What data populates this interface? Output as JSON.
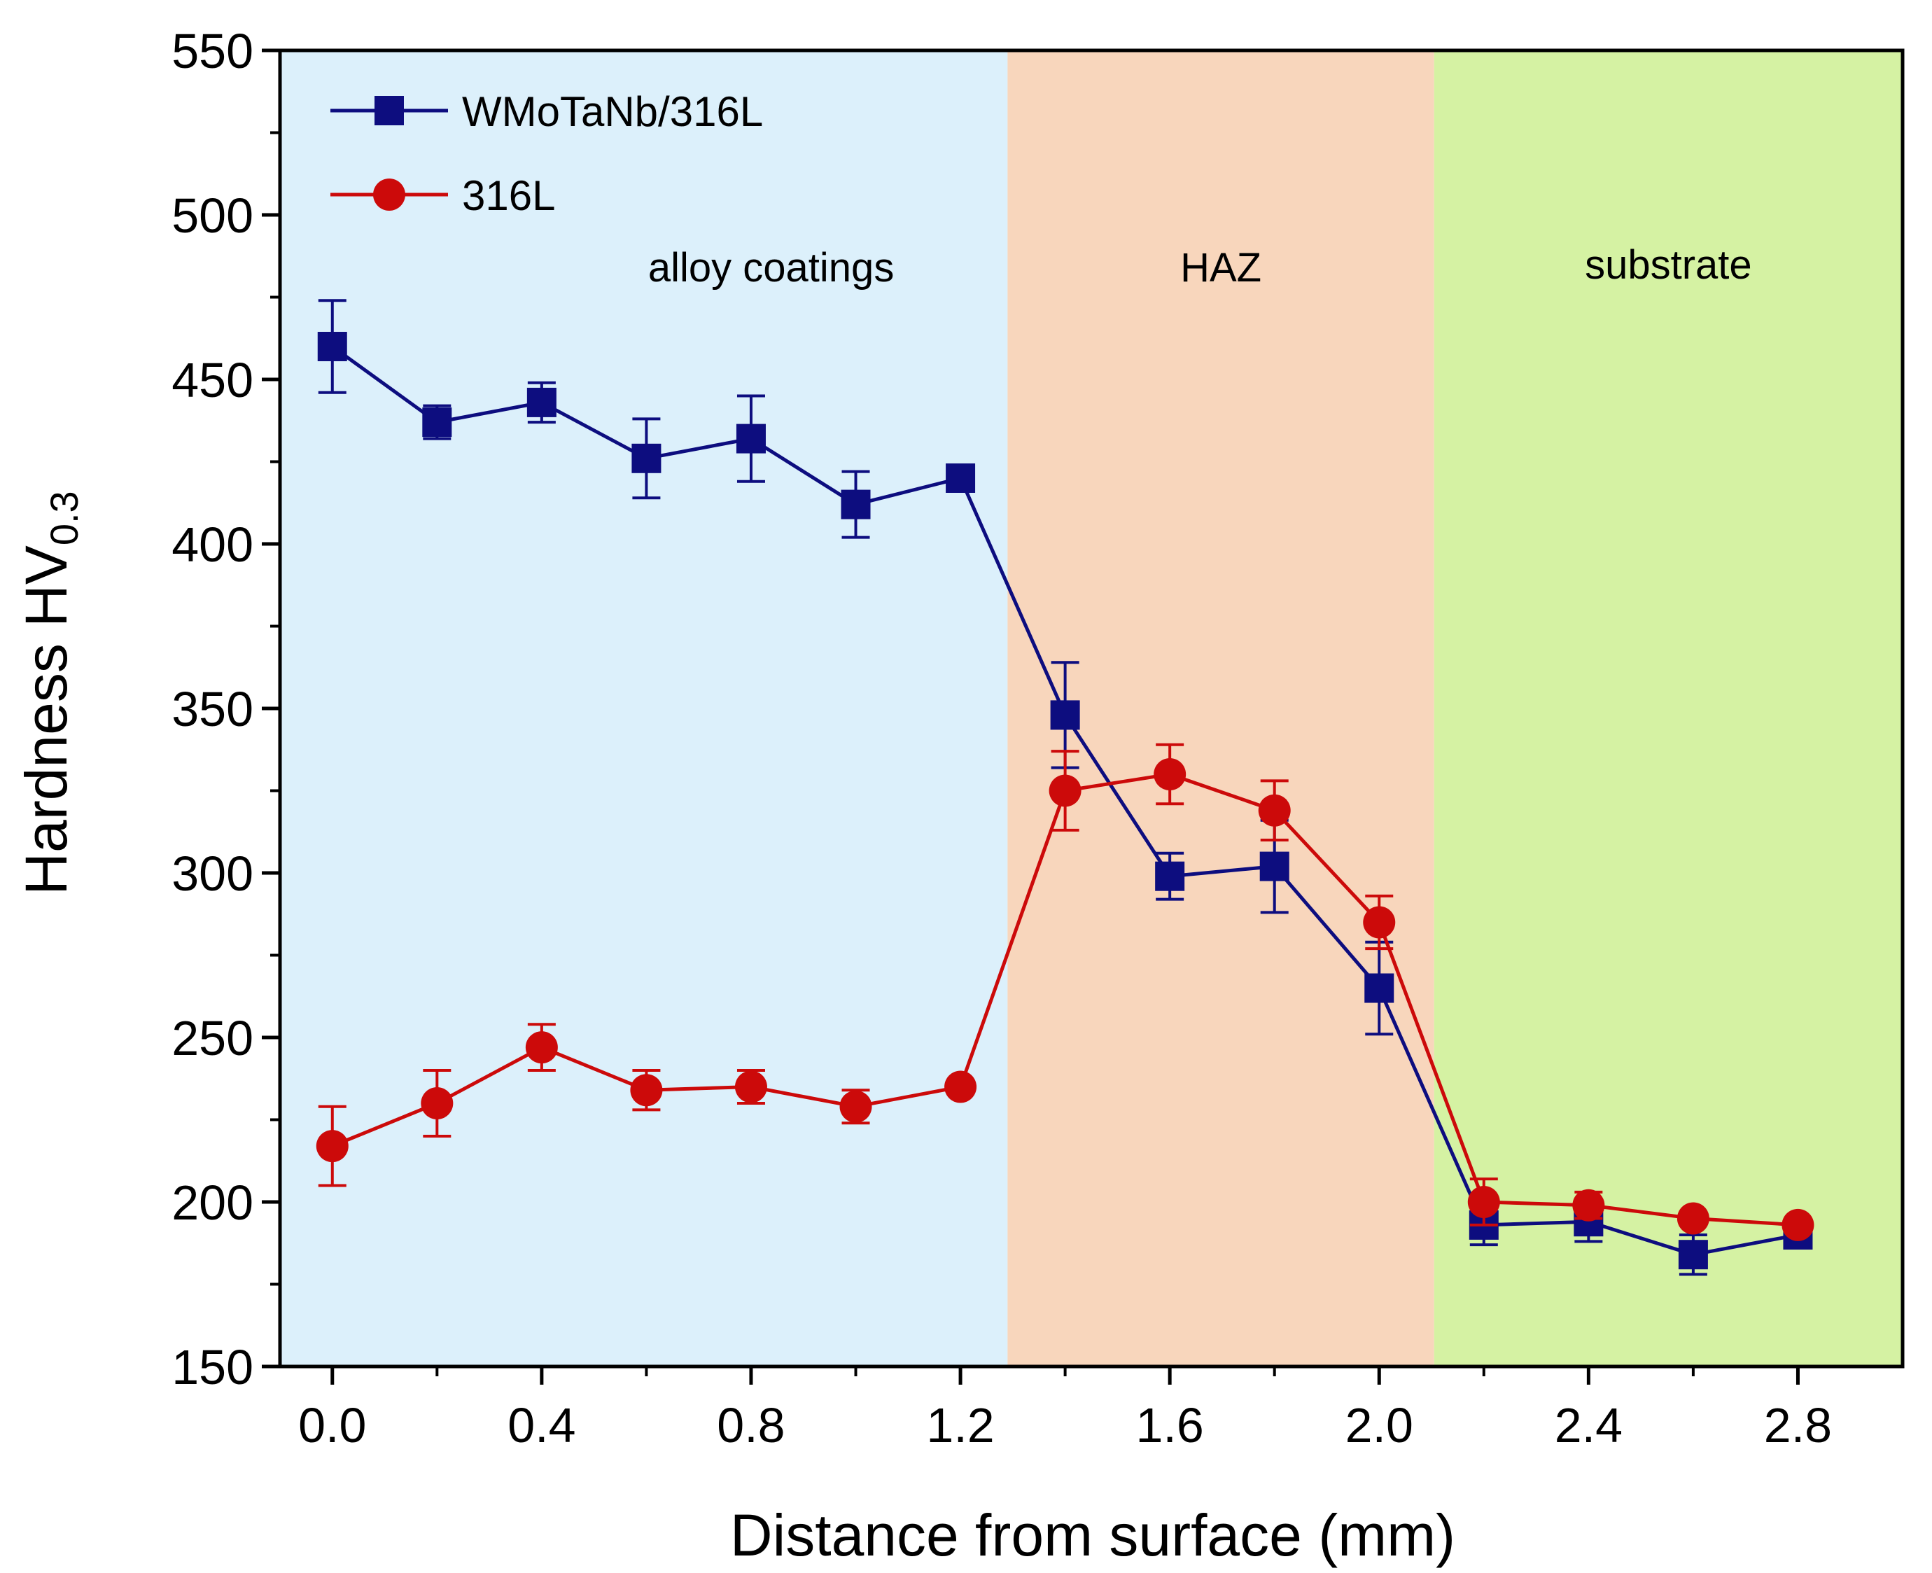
{
  "chart_data": {
    "type": "line",
    "title": "",
    "xlabel": "Distance from surface (mm)",
    "ylabel": "Hardness HV",
    "ylabel_subscript": "0.3",
    "xlim": [
      -0.1,
      3.0
    ],
    "ylim": [
      150,
      550
    ],
    "x_ticks": [
      0.0,
      0.4,
      0.8,
      1.2,
      1.6,
      2.0,
      2.4,
      2.8
    ],
    "x_tick_labels": [
      "0.0",
      "0.4",
      "0.8",
      "1.2",
      "1.6",
      "2.0",
      "2.4",
      "2.8"
    ],
    "y_ticks": [
      150,
      200,
      250,
      300,
      350,
      400,
      450,
      500,
      550
    ],
    "y_tick_labels": [
      "150",
      "200",
      "250",
      "300",
      "350",
      "400",
      "450",
      "500",
      "550"
    ],
    "regions": [
      {
        "label": "alloy coatings",
        "x_start": -0.1,
        "x_end": 1.29,
        "color": "#dcf0fb"
      },
      {
        "label": "HAZ",
        "x_start": 1.29,
        "x_end": 2.105,
        "color": "#f8d6bc"
      },
      {
        "label": "substrate",
        "x_start": 2.105,
        "x_end": 3.0,
        "color": "#d5f2a3"
      }
    ],
    "legend_position": "top-left",
    "x": [
      0.0,
      0.2,
      0.4,
      0.6,
      0.8,
      1.0,
      1.2,
      1.4,
      1.6,
      1.8,
      2.0,
      2.2,
      2.4,
      2.6,
      2.8
    ],
    "series": [
      {
        "name": "WMoTaNb/316L",
        "color": "#0d0d7f",
        "marker": "square",
        "values": [
          460,
          437,
          443,
          426,
          432,
          412,
          420,
          348,
          299,
          302,
          265,
          193,
          194,
          184,
          190
        ],
        "errors": [
          14,
          5,
          6,
          12,
          13,
          10,
          2,
          16,
          7,
          14,
          14,
          6,
          6,
          6,
          2
        ]
      },
      {
        "name": "316L",
        "color": "#cc0a0a",
        "marker": "circle",
        "values": [
          217,
          230,
          247,
          234,
          235,
          229,
          235,
          325,
          330,
          319,
          285,
          200,
          199,
          195,
          193
        ],
        "errors": [
          12,
          10,
          7,
          6,
          5,
          5,
          1,
          12,
          9,
          9,
          8,
          7,
          4,
          2,
          2
        ]
      }
    ]
  }
}
